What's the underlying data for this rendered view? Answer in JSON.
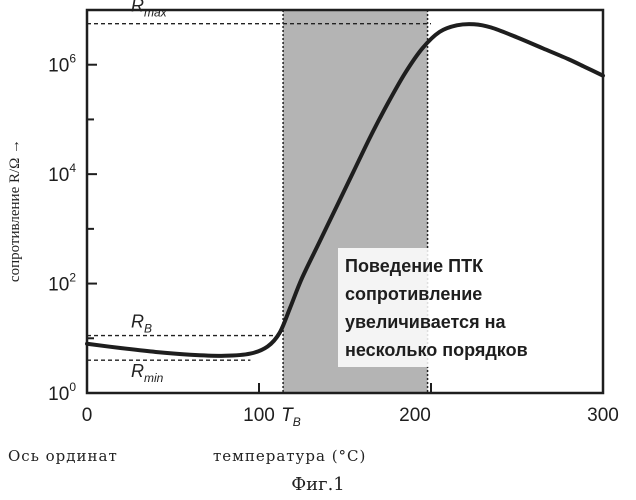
{
  "chart_data": {
    "type": "line",
    "xlabel": "температура (°C)",
    "ylabel": "сопротивление R/Ω →",
    "x_axis_note": "Ось ординат",
    "figure_caption": "Фиг.1",
    "xlim": [
      0,
      300
    ],
    "ylim_log10": [
      0,
      7
    ],
    "y_scale": "log",
    "x_ticks": [
      0,
      100,
      200,
      300
    ],
    "x_tick_labels": [
      "0",
      "100",
      "200",
      "300"
    ],
    "y_ticks_log10": [
      0,
      2,
      4,
      6
    ],
    "y_tick_labels": [
      {
        "base": "10",
        "exp": "0"
      },
      {
        "base": "10",
        "exp": "2"
      },
      {
        "base": "10",
        "exp": "4"
      },
      {
        "base": "10",
        "exp": "6"
      }
    ],
    "y_minor_ticks_log10": [
      1,
      3,
      5
    ],
    "grid": false,
    "shaded_region": {
      "x_start": 114,
      "x_end": 198,
      "color": "#b4b4b4"
    },
    "series": [
      {
        "x": [
          0,
          20,
          40,
          60,
          80,
          95,
          105,
          112,
          118,
          125,
          135,
          145,
          155,
          165,
          175,
          185,
          195,
          205,
          215,
          225,
          235,
          250,
          265,
          280,
          290,
          300
        ],
        "log10_y": [
          0.9,
          0.82,
          0.75,
          0.7,
          0.68,
          0.72,
          0.85,
          1.1,
          1.55,
          2.1,
          2.75,
          3.4,
          4.05,
          4.7,
          5.3,
          5.85,
          6.3,
          6.6,
          6.72,
          6.74,
          6.68,
          6.5,
          6.3,
          6.1,
          5.95,
          5.8
        ]
      }
    ],
    "reference_lines": [
      {
        "label_base": "R",
        "label_sub": "max",
        "log10_y": 6.75,
        "x_start": 0,
        "x_end": 200
      },
      {
        "label_base": "R",
        "label_sub": "B",
        "log10_y": 1.05,
        "x_start": 0,
        "x_end": 114
      },
      {
        "label_base": "R",
        "label_sub": "min",
        "log10_y": 0.6,
        "x_start": 0,
        "x_end": 95
      }
    ],
    "vertical_marker": {
      "label_base": "T",
      "label_sub": "B",
      "x": 114
    },
    "annotation_lines": [
      "Поведение ПТК",
      "сопротивление",
      "увеличивается на",
      "несколько порядков"
    ]
  }
}
